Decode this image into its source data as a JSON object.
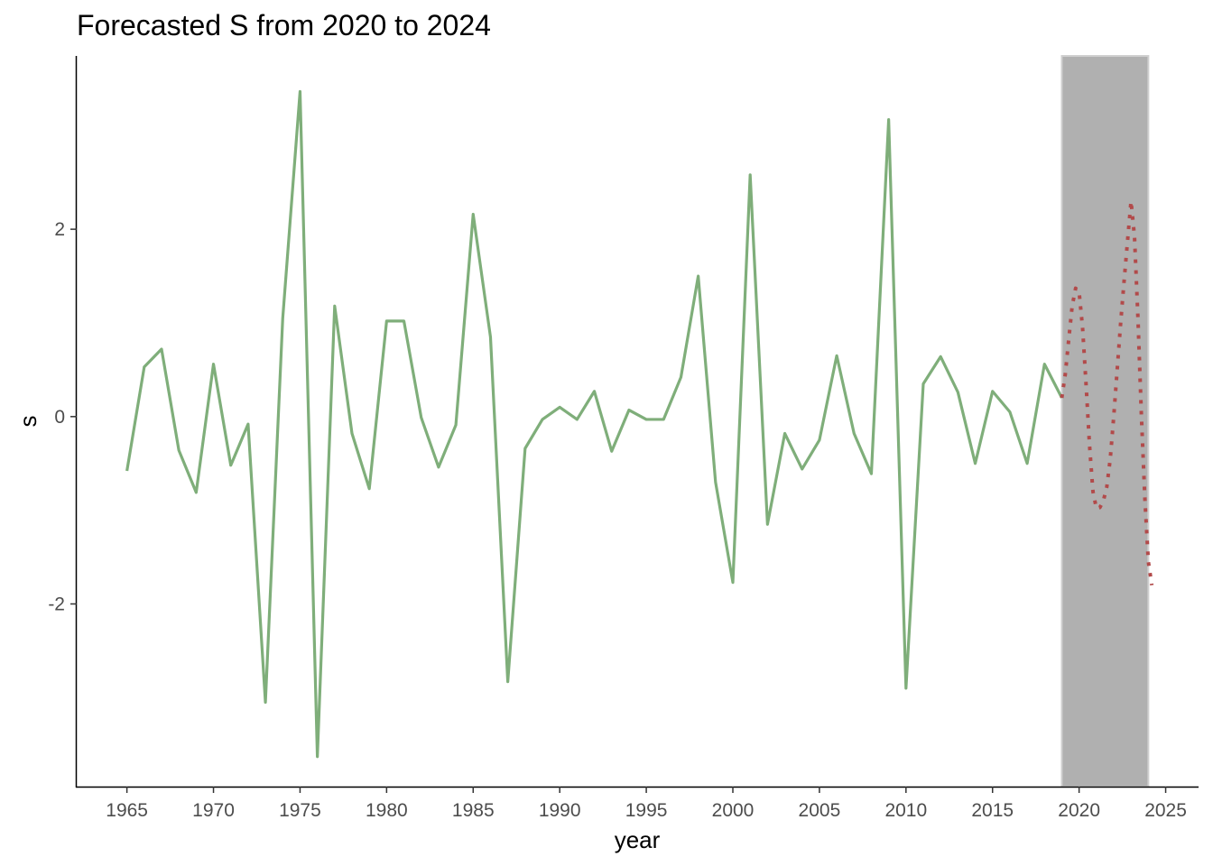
{
  "chart_data": {
    "type": "line",
    "title": "Forecasted S from 2020 to 2024",
    "xlabel": "year",
    "ylabel": "s",
    "xlim": [
      1962.1,
      2026.9
    ],
    "ylim": [
      -3.95,
      3.85
    ],
    "xticks": [
      1965,
      1970,
      1975,
      1980,
      1985,
      1990,
      1995,
      2000,
      2005,
      2010,
      2015,
      2020,
      2025
    ],
    "xtick_labels": [
      "1965",
      "1970",
      "1975",
      "1980",
      "1985",
      "1990",
      "1995",
      "2000",
      "2005",
      "2010",
      "2015",
      "2020",
      "2025"
    ],
    "yticks": [
      -2,
      0,
      2
    ],
    "ytick_labels": [
      "-2",
      "0",
      "2"
    ],
    "grid": false,
    "shaded_region": {
      "x_start": 2019,
      "x_end": 2024,
      "color": "#b0b0b0"
    },
    "series": [
      {
        "style": "solid",
        "color": "#7fae7a",
        "points": [
          [
            1965,
            -0.58
          ],
          [
            1966,
            0.53
          ],
          [
            1967,
            0.72
          ],
          [
            1968,
            -0.36
          ],
          [
            1969,
            -0.81
          ],
          [
            1970,
            0.56
          ],
          [
            1971,
            -0.52
          ],
          [
            1972,
            -0.08
          ],
          [
            1973,
            -3.05
          ],
          [
            1974,
            1.05
          ],
          [
            1975,
            3.47
          ],
          [
            1976,
            -3.63
          ],
          [
            1977,
            1.18
          ],
          [
            1978,
            -0.18
          ],
          [
            1979,
            -0.77
          ],
          [
            1980,
            1.02
          ],
          [
            1981,
            1.02
          ],
          [
            1982,
            -0.01
          ],
          [
            1983,
            -0.54
          ],
          [
            1984,
            -0.09
          ],
          [
            1985,
            2.16
          ],
          [
            1986,
            0.85
          ],
          [
            1987,
            -2.83
          ],
          [
            1988,
            -0.34
          ],
          [
            1989,
            -0.03
          ],
          [
            1990,
            0.1
          ],
          [
            1991,
            -0.03
          ],
          [
            1992,
            0.27
          ],
          [
            1993,
            -0.37
          ],
          [
            1994,
            0.07
          ],
          [
            1995,
            -0.03
          ],
          [
            1996,
            -0.03
          ],
          [
            1997,
            0.42
          ],
          [
            1998,
            1.5
          ],
          [
            1999,
            -0.7
          ],
          [
            2000,
            -1.77
          ],
          [
            2001,
            2.58
          ],
          [
            2002,
            -1.15
          ],
          [
            2003,
            -0.18
          ],
          [
            2004,
            -0.56
          ],
          [
            2005,
            -0.25
          ],
          [
            2006,
            0.65
          ],
          [
            2007,
            -0.18
          ],
          [
            2008,
            -0.61
          ],
          [
            2009,
            3.17
          ],
          [
            2010,
            -2.9
          ],
          [
            2011,
            0.35
          ],
          [
            2012,
            0.64
          ],
          [
            2013,
            0.26
          ],
          [
            2014,
            -0.5
          ],
          [
            2015,
            0.27
          ],
          [
            2016,
            0.05
          ],
          [
            2017,
            -0.5
          ],
          [
            2018,
            0.56
          ],
          [
            2019,
            0.2
          ]
        ]
      },
      {
        "style": "dotted",
        "color": "#b24a4a",
        "points": [
          [
            2019.0,
            0.2
          ],
          [
            2019.2,
            0.45
          ],
          [
            2019.4,
            0.82
          ],
          [
            2019.6,
            1.18
          ],
          [
            2019.8,
            1.37
          ],
          [
            2020.0,
            1.33
          ],
          [
            2020.2,
            0.95
          ],
          [
            2020.4,
            0.35
          ],
          [
            2020.6,
            -0.3
          ],
          [
            2020.8,
            -0.8
          ],
          [
            2021.0,
            -0.98
          ],
          [
            2021.2,
            -0.97
          ],
          [
            2021.4,
            -0.9
          ],
          [
            2021.6,
            -0.75
          ],
          [
            2021.8,
            -0.45
          ],
          [
            2022.0,
            0.0
          ],
          [
            2022.2,
            0.5
          ],
          [
            2022.4,
            1.0
          ],
          [
            2022.6,
            1.45
          ],
          [
            2022.8,
            1.88
          ],
          [
            2023.0,
            2.3
          ],
          [
            2023.2,
            1.92
          ],
          [
            2023.4,
            1.05
          ],
          [
            2023.6,
            0.0
          ],
          [
            2023.8,
            -0.88
          ],
          [
            2024.0,
            -1.55
          ],
          [
            2024.2,
            -1.8
          ]
        ]
      }
    ]
  }
}
